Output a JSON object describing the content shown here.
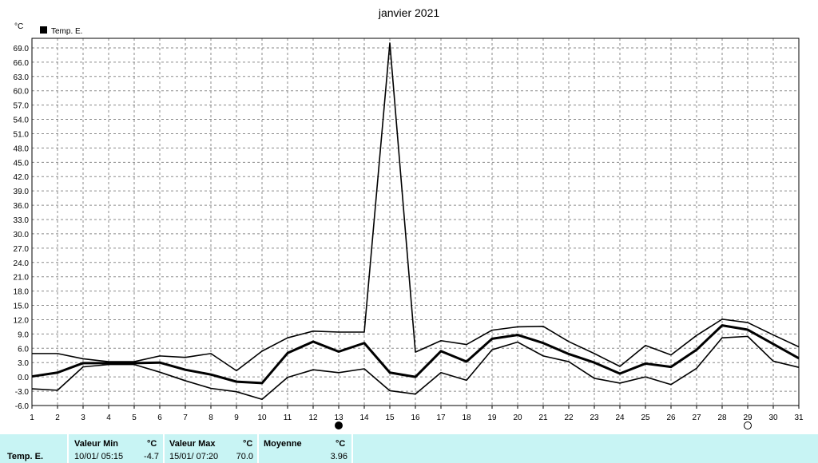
{
  "chart_data": {
    "type": "line",
    "title": "janvier 2021",
    "ylabel": "°C",
    "ylim": [
      -6,
      71
    ],
    "yticks": [
      "69.0",
      "66.0",
      "63.0",
      "60.0",
      "57.0",
      "54.0",
      "51.0",
      "48.0",
      "45.0",
      "42.0",
      "39.0",
      "36.0",
      "33.0",
      "30.0",
      "27.0",
      "24.0",
      "21.0",
      "18.0",
      "15.0",
      "12.0",
      "9.0",
      "6.0",
      "3.0",
      "0.0",
      "-3.0",
      "-6.0"
    ],
    "x": [
      1,
      2,
      3,
      4,
      5,
      6,
      7,
      8,
      9,
      10,
      11,
      12,
      13,
      14,
      15,
      16,
      17,
      18,
      19,
      20,
      21,
      22,
      23,
      24,
      25,
      26,
      27,
      28,
      29,
      30,
      31
    ],
    "grid": true,
    "legend": [
      "Temp. E."
    ],
    "series": [
      {
        "name": "Temp. E.",
        "role": "max",
        "values": [
          4.9,
          4.9,
          3.8,
          3.2,
          3.2,
          4.4,
          4.1,
          4.9,
          1.3,
          5.4,
          8.2,
          9.6,
          9.4,
          9.4,
          70.0,
          5.2,
          7.6,
          6.8,
          9.8,
          10.5,
          10.6,
          7.4,
          4.9,
          2.2,
          6.6,
          4.6,
          8.7,
          12.1,
          11.4,
          8.8,
          6.3
        ]
      },
      {
        "name": "Temp. E.",
        "role": "mean",
        "values": [
          0.1,
          0.9,
          2.9,
          2.9,
          2.9,
          3.0,
          1.5,
          0.5,
          -1.0,
          -1.3,
          5.0,
          7.4,
          5.3,
          7.1,
          0.9,
          0.0,
          5.4,
          3.2,
          8.0,
          8.8,
          7.1,
          4.8,
          3.0,
          0.7,
          2.8,
          2.1,
          5.7,
          10.8,
          9.9,
          6.9,
          3.9
        ]
      },
      {
        "name": "Temp. E.",
        "role": "min",
        "values": [
          -2.5,
          -2.8,
          2.1,
          2.6,
          2.6,
          1.0,
          -0.8,
          -2.4,
          -3.1,
          -4.7,
          -0.1,
          1.5,
          0.9,
          1.7,
          -2.9,
          -3.6,
          0.9,
          -0.7,
          5.7,
          7.3,
          4.4,
          3.2,
          -0.3,
          -1.3,
          0.0,
          -1.6,
          1.8,
          8.2,
          8.5,
          3.3,
          2.0
        ]
      }
    ],
    "moon_phases": [
      {
        "day": 13,
        "type": "new"
      },
      {
        "day": 29,
        "type": "full"
      }
    ],
    "colors": {
      "lines": "#000000",
      "grid": "#8a8a8a",
      "stats_bg": "#c8f4f4"
    }
  },
  "stats": {
    "row_label": "Temp. E.",
    "min_header": "Valeur Min",
    "min_unit": "°C",
    "min_date": "10/01/  05:15",
    "min_value": "-4.7",
    "max_header": "Valeur Max",
    "max_unit": "°C",
    "max_date": "15/01/  07:20",
    "max_value": "70.0",
    "avg_header": "Moyenne",
    "avg_unit": "°C",
    "avg_value": "3.96"
  }
}
